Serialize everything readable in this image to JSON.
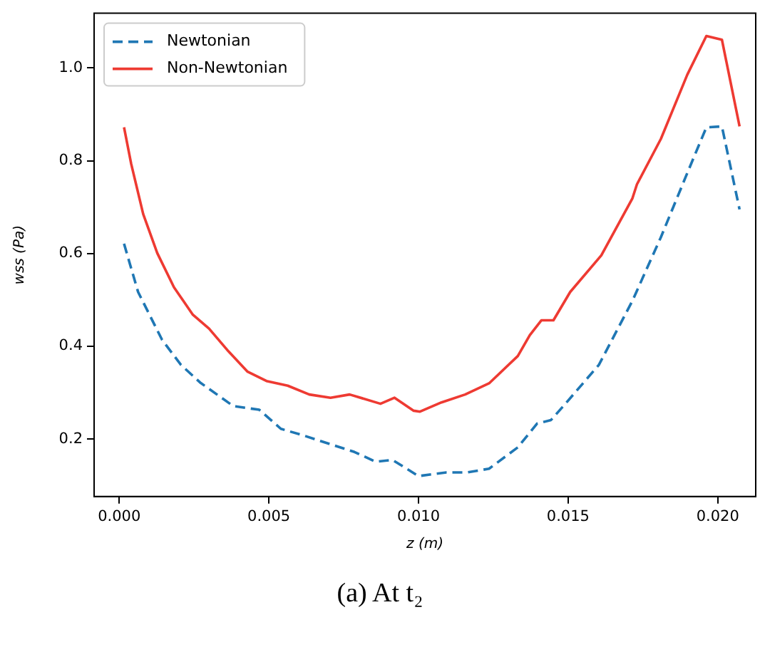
{
  "chart_data": {
    "type": "line",
    "xlabel": "z (m)",
    "ylabel": "wss (Pa)",
    "xlim": [
      -0.00084,
      0.02127
    ],
    "ylim": [
      0.076,
      1.118
    ],
    "xticks": [
      {
        "value": 0,
        "label": "0.000"
      },
      {
        "value": 0.005,
        "label": "0.005"
      },
      {
        "value": 0.01,
        "label": "0.010"
      },
      {
        "value": 0.015,
        "label": "0.015"
      },
      {
        "value": 0.02,
        "label": "0.020"
      }
    ],
    "yticks": [
      0.2,
      0.4,
      0.6,
      0.8,
      {
        "value": 1,
        "label": "1.0"
      }
    ],
    "legend": "top left",
    "grid": false,
    "marker": "none",
    "annotations": [
      "(a) At t₂"
    ],
    "series": [
      {
        "name": "Newtonian",
        "color": "#1f77b4",
        "line_style": "dashed",
        "x": [
          0.00016,
          0.00063,
          0.00143,
          0.00206,
          0.0027,
          0.00381,
          0.00468,
          0.0054,
          0.00619,
          0.00714,
          0.00786,
          0.00857,
          0.00913,
          0.01,
          0.01093,
          0.01164,
          0.01236,
          0.01332,
          0.01396,
          0.01443,
          0.01491,
          0.01603,
          0.01715,
          0.0181,
          0.01898,
          0.01962,
          0.02014,
          0.02073
        ],
        "values": [
          0.621,
          0.517,
          0.414,
          0.36,
          0.322,
          0.271,
          0.263,
          0.222,
          0.207,
          0.187,
          0.172,
          0.151,
          0.155,
          0.12,
          0.128,
          0.128,
          0.136,
          0.182,
          0.233,
          0.241,
          0.276,
          0.36,
          0.498,
          0.635,
          0.773,
          0.872,
          0.874,
          0.695
        ]
      },
      {
        "name": "Non-Newtonian",
        "color": "#ee3a32",
        "line_style": "solid",
        "x": [
          0.00016,
          0.0004,
          0.0008,
          0.00127,
          0.00183,
          0.00246,
          0.003,
          0.00365,
          0.00429,
          0.00492,
          0.00563,
          0.00635,
          0.00706,
          0.0077,
          0.00873,
          0.0092,
          0.00984,
          0.01005,
          0.01077,
          0.01156,
          0.01236,
          0.01332,
          0.01372,
          0.01411,
          0.01451,
          0.01507,
          0.01611,
          0.01715,
          0.0173,
          0.0181,
          0.01898,
          0.01962,
          0.02014,
          0.02073
        ],
        "values": [
          0.872,
          0.793,
          0.685,
          0.601,
          0.527,
          0.468,
          0.438,
          0.389,
          0.345,
          0.325,
          0.315,
          0.296,
          0.289,
          0.296,
          0.276,
          0.289,
          0.261,
          0.259,
          0.279,
          0.296,
          0.32,
          0.379,
          0.424,
          0.456,
          0.456,
          0.517,
          0.596,
          0.719,
          0.749,
          0.847,
          0.985,
          1.069,
          1.061,
          0.874
        ]
      }
    ]
  }
}
